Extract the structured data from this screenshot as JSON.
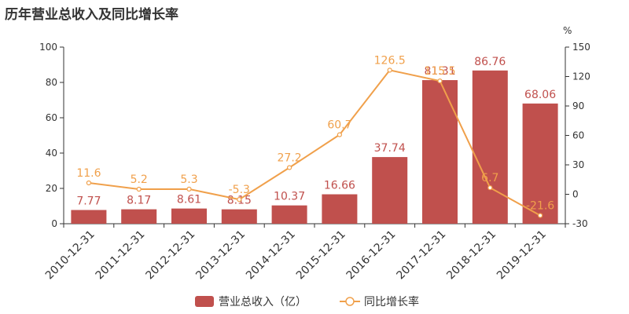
{
  "title": "历年营业总收入及同比增长率",
  "chart_data": {
    "type": "bar",
    "categories": [
      "2010-12-31",
      "2011-12-31",
      "2012-12-31",
      "2013-12-31",
      "2014-12-31",
      "2015-12-31",
      "2016-12-31",
      "2017-12-31",
      "2018-12-31",
      "2019-12-31"
    ],
    "series": [
      {
        "name": "营业总收入（亿）",
        "type": "bar",
        "axis": "left",
        "values": [
          7.77,
          8.17,
          8.61,
          8.15,
          10.37,
          16.66,
          37.74,
          81.31,
          86.76,
          68.06
        ],
        "labels": [
          "7.77",
          "8.17",
          "8.61",
          "8.15",
          "10.37",
          "16.66",
          "37.74",
          "81.31",
          "86.76",
          "68.06"
        ]
      },
      {
        "name": "同比增长率",
        "type": "line",
        "axis": "right",
        "values": [
          11.6,
          5.2,
          5.3,
          -5.3,
          27.2,
          60.7,
          126.5,
          115.5,
          6.7,
          -21.6
        ],
        "labels": [
          "11.6",
          "5.2",
          "5.3",
          "-5.3",
          "27.2",
          "60.7",
          "126.5",
          "115.5",
          "6.7",
          "-21.6"
        ]
      }
    ],
    "y_left": {
      "ylim": [
        0,
        100
      ],
      "ticks": [
        "0",
        "20",
        "40",
        "60",
        "80",
        "100"
      ]
    },
    "y_right": {
      "ylim": [
        -30,
        150
      ],
      "ticks": [
        "-30",
        "0",
        "30",
        "60",
        "90",
        "120",
        "150"
      ],
      "unit_label": "%"
    },
    "colors": {
      "bar": "#c0504d",
      "line": "#f0a04b",
      "bar_label": "#c0504d",
      "line_label": "#f0a04b",
      "axis": "#333333"
    },
    "grid": false,
    "legend_position": "bottom"
  }
}
